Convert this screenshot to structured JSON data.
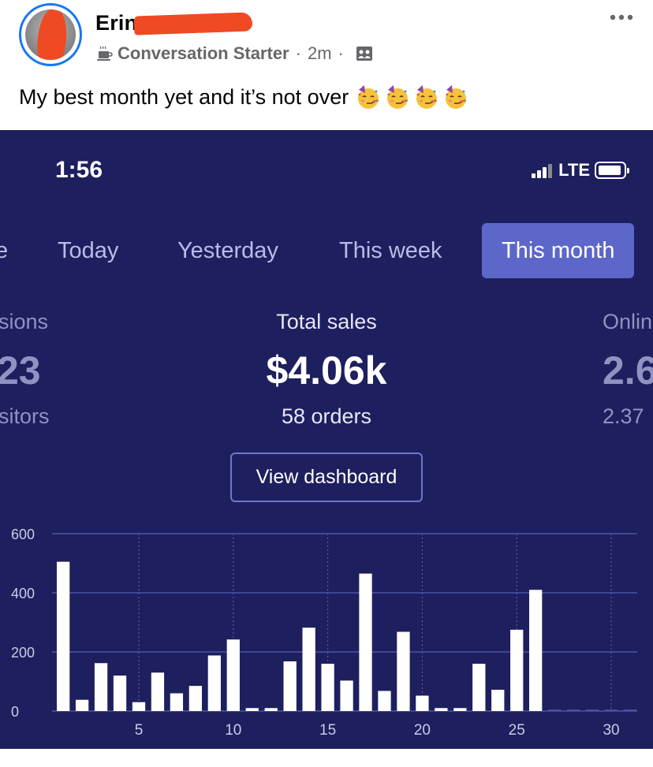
{
  "post": {
    "author_name": "Erin",
    "badge_label": "Conversation Starter",
    "time_ago": "2m",
    "separator": "·",
    "text": "My best month yet and it’s not over",
    "icons": {
      "badge": "coffee-cup-icon",
      "audience": "group-icon",
      "more": "more-dots-icon",
      "emoji": "party-face-emoji"
    },
    "emoji_count": 4
  },
  "status_bar": {
    "time": "1:56",
    "network": "LTE"
  },
  "tabs": [
    {
      "label": "Today"
    },
    {
      "label": "Yesterday"
    },
    {
      "label": "This week"
    },
    {
      "label": "This month",
      "active": true
    }
  ],
  "metrics": {
    "left": {
      "label": "sions",
      "value": "23",
      "sub": "sitors"
    },
    "center": {
      "label": "Total sales",
      "value": "$4.06k",
      "sub": "58 orders"
    },
    "right": {
      "label": "Onlin",
      "value": "2.6",
      "sub": "2.37"
    }
  },
  "view_dashboard_label": "View dashboard",
  "colors": {
    "background": "#1e1f5e",
    "accent": "#5c67c9",
    "bars": "#ffffff",
    "redaction": "#f04a25",
    "facebook_blue": "#1877f2"
  },
  "chart_data": {
    "type": "bar",
    "x": [
      1,
      2,
      3,
      4,
      5,
      6,
      7,
      8,
      9,
      10,
      11,
      12,
      13,
      14,
      15,
      16,
      17,
      18,
      19,
      20,
      21,
      22,
      23,
      24,
      25,
      26,
      27,
      28,
      29,
      30,
      31
    ],
    "values": [
      505,
      38,
      162,
      120,
      30,
      130,
      60,
      85,
      188,
      242,
      10,
      10,
      168,
      282,
      160,
      103,
      465,
      68,
      268,
      52,
      10,
      10,
      160,
      72,
      275,
      410,
      5,
      5,
      5,
      5,
      5
    ],
    "xticks": [
      5,
      10,
      15,
      20,
      25,
      30
    ],
    "yticks": [
      0,
      200,
      400,
      600
    ],
    "ylim": [
      0,
      600
    ],
    "grid": true
  }
}
